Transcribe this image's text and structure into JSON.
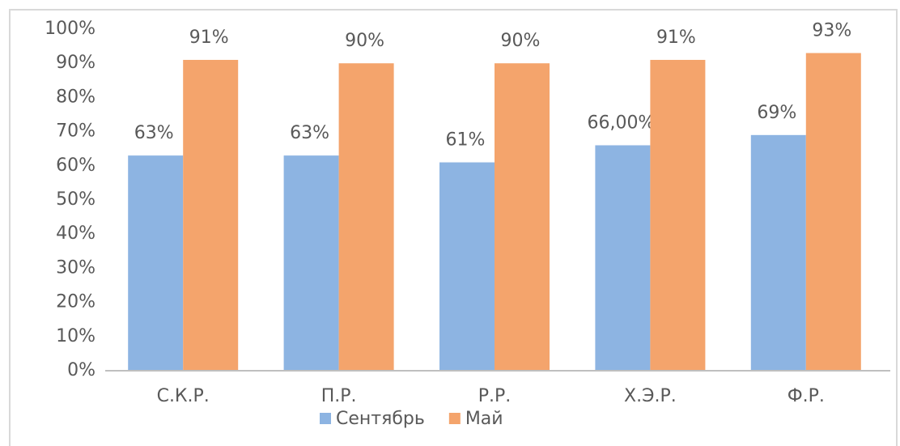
{
  "chart_data": {
    "type": "bar",
    "categories": [
      "С.К.Р.",
      "П.Р.",
      "Р.Р.",
      "Х.Э.Р.",
      "Ф.Р."
    ],
    "series": [
      {
        "name": "Сентябрь",
        "color": "#8db4e2",
        "values": [
          63,
          63,
          61,
          66,
          69
        ],
        "value_labels": [
          "63%",
          "63%",
          "61%",
          "66,00%",
          "69%"
        ]
      },
      {
        "name": "Май",
        "color": "#f4a46c",
        "values": [
          91,
          90,
          90,
          91,
          93
        ],
        "value_labels": [
          "91%",
          "90%",
          "90%",
          "91%",
          "93%"
        ]
      }
    ],
    "ylim": [
      0,
      100
    ],
    "yticks": [
      {
        "value": 0,
        "label": "0%"
      },
      {
        "value": 10,
        "label": "10%"
      },
      {
        "value": 20,
        "label": "20%"
      },
      {
        "value": 30,
        "label": "30%"
      },
      {
        "value": 40,
        "label": "40%"
      },
      {
        "value": 50,
        "label": "50%"
      },
      {
        "value": 60,
        "label": "60%"
      },
      {
        "value": 70,
        "label": "70%"
      },
      {
        "value": 80,
        "label": "80%"
      },
      {
        "value": 90,
        "label": "90%"
      },
      {
        "value": 100,
        "label": "100%"
      }
    ],
    "grid": false,
    "legend": "bottom"
  }
}
